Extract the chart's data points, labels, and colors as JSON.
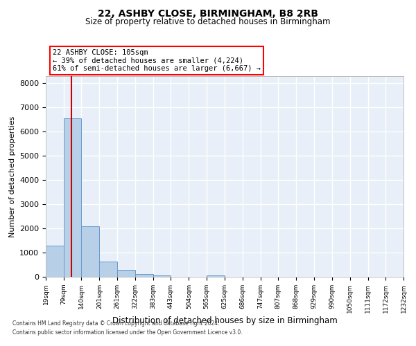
{
  "title1": "22, ASHBY CLOSE, BIRMINGHAM, B8 2RB",
  "title2": "Size of property relative to detached houses in Birmingham",
  "xlabel": "Distribution of detached houses by size in Birmingham",
  "ylabel": "Number of detached properties",
  "footer1": "Contains HM Land Registry data © Crown copyright and database right 2024.",
  "footer2": "Contains public sector information licensed under the Open Government Licence v3.0.",
  "annotation_title": "22 ASHBY CLOSE: 105sqm",
  "annotation_line1": "← 39% of detached houses are smaller (4,224)",
  "annotation_line2": "61% of semi-detached houses are larger (6,667) →",
  "property_sqm": 105,
  "bar_left_edges": [
    19,
    79,
    140,
    201,
    261,
    322,
    383,
    443,
    504,
    565,
    625,
    686,
    747,
    807,
    868,
    929,
    990,
    1050,
    1111,
    1172
  ],
  "bar_widths": [
    60,
    61,
    61,
    60,
    61,
    61,
    60,
    61,
    61,
    60,
    61,
    61,
    60,
    61,
    61,
    61,
    60,
    61,
    61,
    60
  ],
  "bar_heights": [
    1300,
    6550,
    2080,
    620,
    290,
    120,
    70,
    0,
    0,
    70,
    0,
    0,
    0,
    0,
    0,
    0,
    0,
    0,
    0,
    0
  ],
  "bar_color": "#b8cfe8",
  "bar_edgecolor": "#6699cc",
  "bg_color": "#e8eff8",
  "grid_color": "#ffffff",
  "red_line_color": "#cc0000",
  "ylim": [
    0,
    8300
  ],
  "yticks": [
    0,
    1000,
    2000,
    3000,
    4000,
    5000,
    6000,
    7000,
    8000
  ],
  "tick_labels": [
    "19sqm",
    "79sqm",
    "140sqm",
    "201sqm",
    "261sqm",
    "322sqm",
    "383sqm",
    "443sqm",
    "504sqm",
    "565sqm",
    "625sqm",
    "686sqm",
    "747sqm",
    "807sqm",
    "868sqm",
    "929sqm",
    "990sqm",
    "1050sqm",
    "1111sqm",
    "1172sqm",
    "1232sqm"
  ]
}
